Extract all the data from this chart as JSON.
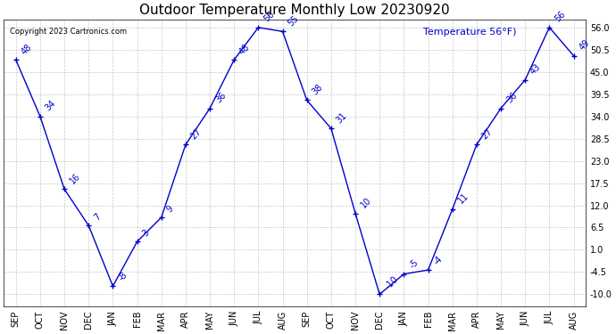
{
  "title": "Outdoor Temperature Monthly Low 20230920",
  "ylabel_legend": "Temperature 56°F)",
  "copyright": "Copyright 2023 Cartronics.com",
  "line_color": "#0000cc",
  "bg_color": "#ffffff",
  "grid_color": "#c8c8c8",
  "months": [
    "SEP",
    "OCT",
    "NOV",
    "DEC",
    "JAN",
    "FEB",
    "MAR",
    "APR",
    "MAY",
    "JUN",
    "JUL",
    "AUG",
    "SEP",
    "OCT",
    "NOV",
    "DEC",
    "JAN",
    "FEB",
    "MAR",
    "APR",
    "MAY",
    "JUN",
    "JUL",
    "AUG"
  ],
  "values": [
    48,
    34,
    16,
    7,
    -8,
    3,
    9,
    27,
    36,
    48,
    56,
    55,
    38,
    31,
    10,
    -10,
    -5,
    -4,
    11,
    27,
    36,
    43,
    56,
    49
  ],
  "ylim_min": -13,
  "ylim_max": 58,
  "ytick_vals": [
    -10.0,
    -4.5,
    1.0,
    6.5,
    12.0,
    17.5,
    23.0,
    28.5,
    34.0,
    39.5,
    45.0,
    50.5,
    56.0
  ],
  "title_fontsize": 11,
  "tick_fontsize": 7,
  "annotation_fontsize": 7,
  "copyright_fontsize": 6,
  "legend_fontsize": 8
}
